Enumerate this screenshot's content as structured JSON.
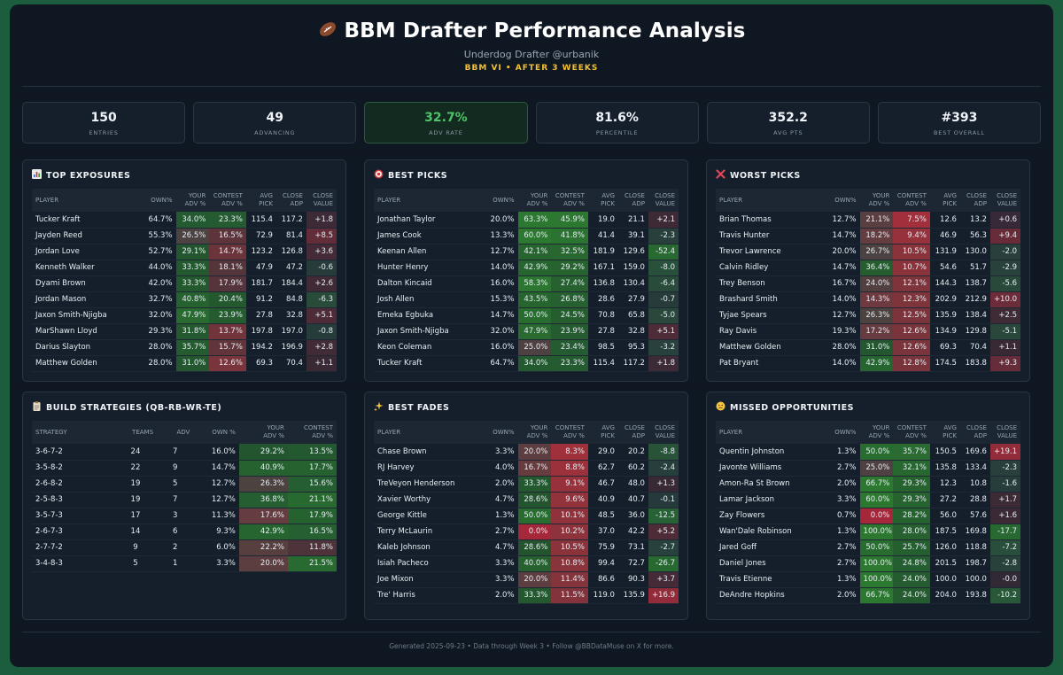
{
  "header": {
    "title": "BBM Drafter Performance Analysis",
    "subtitle": "Underdog Drafter @urbanik",
    "season": "BBM VI • AFTER 3 WEEKS"
  },
  "stats": [
    {
      "value": "150",
      "label": "ENTRIES"
    },
    {
      "value": "49",
      "label": "ADVANCING"
    },
    {
      "value": "32.7%",
      "label": "ADV RATE",
      "highlight": true
    },
    {
      "value": "81.6%",
      "label": "PERCENTILE"
    },
    {
      "value": "352.2",
      "label": "AVG PTS"
    },
    {
      "value": "#393",
      "label": "BEST OVERALL"
    }
  ],
  "player_columns": [
    "PLAYER",
    "OWN%",
    "YOUR ADV %",
    "CONTEST ADV %",
    "AVG PICK",
    "CLOSE ADP",
    "CLOSE VALUE"
  ],
  "panels": {
    "top_exposures": {
      "title": "TOP EXPOSURES",
      "icon": "bar-chart-icon",
      "rows": [
        [
          "Tucker Kraft",
          "64.7%",
          "34.0%",
          "23.3%",
          "115.4",
          "117.2",
          "+1.8"
        ],
        [
          "Jayden Reed",
          "55.3%",
          "26.5%",
          "16.5%",
          "72.9",
          "81.4",
          "+8.5"
        ],
        [
          "Jordan Love",
          "52.7%",
          "29.1%",
          "14.7%",
          "123.2",
          "126.8",
          "+3.6"
        ],
        [
          "Kenneth Walker",
          "44.0%",
          "33.3%",
          "18.1%",
          "47.9",
          "47.2",
          "-0.6"
        ],
        [
          "Dyami Brown",
          "42.0%",
          "33.3%",
          "17.9%",
          "181.7",
          "184.4",
          "+2.6"
        ],
        [
          "Jordan Mason",
          "32.7%",
          "40.8%",
          "20.4%",
          "91.2",
          "84.8",
          "-6.3"
        ],
        [
          "Jaxon Smith-Njigba",
          "32.0%",
          "47.9%",
          "23.9%",
          "27.8",
          "32.8",
          "+5.1"
        ],
        [
          "MarShawn Lloyd",
          "29.3%",
          "31.8%",
          "13.7%",
          "197.8",
          "197.0",
          "-0.8"
        ],
        [
          "Darius Slayton",
          "28.0%",
          "35.7%",
          "15.7%",
          "194.2",
          "196.9",
          "+2.8"
        ],
        [
          "Matthew Golden",
          "28.0%",
          "31.0%",
          "12.6%",
          "69.3",
          "70.4",
          "+1.1"
        ]
      ]
    },
    "best_picks": {
      "title": "BEST PICKS",
      "icon": "target-icon",
      "rows": [
        [
          "Jonathan Taylor",
          "20.0%",
          "63.3%",
          "45.9%",
          "19.0",
          "21.1",
          "+2.1"
        ],
        [
          "James Cook",
          "13.3%",
          "60.0%",
          "41.8%",
          "41.4",
          "39.1",
          "-2.3"
        ],
        [
          "Keenan Allen",
          "12.7%",
          "42.1%",
          "32.5%",
          "181.9",
          "129.6",
          "-52.4"
        ],
        [
          "Hunter Henry",
          "14.0%",
          "42.9%",
          "29.2%",
          "167.1",
          "159.0",
          "-8.0"
        ],
        [
          "Dalton Kincaid",
          "16.0%",
          "58.3%",
          "27.4%",
          "136.8",
          "130.4",
          "-6.4"
        ],
        [
          "Josh Allen",
          "15.3%",
          "43.5%",
          "26.8%",
          "28.6",
          "27.9",
          "-0.7"
        ],
        [
          "Emeka Egbuka",
          "14.7%",
          "50.0%",
          "24.5%",
          "70.8",
          "65.8",
          "-5.0"
        ],
        [
          "Jaxon Smith-Njigba",
          "32.0%",
          "47.9%",
          "23.9%",
          "27.8",
          "32.8",
          "+5.1"
        ],
        [
          "Keon Coleman",
          "16.0%",
          "25.0%",
          "23.4%",
          "98.5",
          "95.3",
          "-3.2"
        ],
        [
          "Tucker Kraft",
          "64.7%",
          "34.0%",
          "23.3%",
          "115.4",
          "117.2",
          "+1.8"
        ]
      ]
    },
    "worst_picks": {
      "title": "WORST PICKS",
      "icon": "x-icon",
      "rows": [
        [
          "Brian Thomas",
          "12.7%",
          "21.1%",
          "7.5%",
          "12.6",
          "13.2",
          "+0.6"
        ],
        [
          "Travis Hunter",
          "14.7%",
          "18.2%",
          "9.4%",
          "46.9",
          "56.3",
          "+9.4"
        ],
        [
          "Trevor Lawrence",
          "20.0%",
          "26.7%",
          "10.5%",
          "131.9",
          "130.0",
          "-2.0"
        ],
        [
          "Calvin Ridley",
          "14.7%",
          "36.4%",
          "10.7%",
          "54.6",
          "51.7",
          "-2.9"
        ],
        [
          "Trey Benson",
          "16.7%",
          "24.0%",
          "12.1%",
          "144.3",
          "138.7",
          "-5.6"
        ],
        [
          "Brashard Smith",
          "14.0%",
          "14.3%",
          "12.3%",
          "202.9",
          "212.9",
          "+10.0"
        ],
        [
          "Tyjae Spears",
          "12.7%",
          "26.3%",
          "12.5%",
          "135.9",
          "138.4",
          "+2.5"
        ],
        [
          "Ray Davis",
          "19.3%",
          "17.2%",
          "12.6%",
          "134.9",
          "129.8",
          "-5.1"
        ],
        [
          "Matthew Golden",
          "28.0%",
          "31.0%",
          "12.6%",
          "69.3",
          "70.4",
          "+1.1"
        ],
        [
          "Pat Bryant",
          "14.0%",
          "42.9%",
          "12.8%",
          "174.5",
          "183.8",
          "+9.3"
        ]
      ]
    },
    "build_strategies": {
      "title": "BUILD STRATEGIES (QB-RB-WR-TE)",
      "icon": "clipboard-icon",
      "columns": [
        "STRATEGY",
        "TEAMS",
        "ADV",
        "OWN %",
        "YOUR ADV %",
        "CONTEST ADV %"
      ],
      "rows": [
        [
          "3-6-7-2",
          "24",
          "7",
          "16.0%",
          "29.2%",
          "13.5%"
        ],
        [
          "3-5-8-2",
          "22",
          "9",
          "14.7%",
          "40.9%",
          "17.7%"
        ],
        [
          "2-6-8-2",
          "19",
          "5",
          "12.7%",
          "26.3%",
          "15.6%"
        ],
        [
          "2-5-8-3",
          "19",
          "7",
          "12.7%",
          "36.8%",
          "21.1%"
        ],
        [
          "3-5-7-3",
          "17",
          "3",
          "11.3%",
          "17.6%",
          "17.9%"
        ],
        [
          "2-6-7-3",
          "14",
          "6",
          "9.3%",
          "42.9%",
          "16.5%"
        ],
        [
          "2-7-7-2",
          "9",
          "2",
          "6.0%",
          "22.2%",
          "11.8%"
        ],
        [
          "3-4-8-3",
          "5",
          "1",
          "3.3%",
          "20.0%",
          "21.5%"
        ]
      ]
    },
    "best_fades": {
      "title": "BEST FADES",
      "icon": "sparkle-icon",
      "rows": [
        [
          "Chase Brown",
          "3.3%",
          "20.0%",
          "8.3%",
          "29.0",
          "20.2",
          "-8.8"
        ],
        [
          "RJ Harvey",
          "4.0%",
          "16.7%",
          "8.8%",
          "62.7",
          "60.2",
          "-2.4"
        ],
        [
          "TreVeyon Henderson",
          "2.0%",
          "33.3%",
          "9.1%",
          "46.7",
          "48.0",
          "+1.3"
        ],
        [
          "Xavier Worthy",
          "4.7%",
          "28.6%",
          "9.6%",
          "40.9",
          "40.7",
          "-0.1"
        ],
        [
          "George Kittle",
          "1.3%",
          "50.0%",
          "10.1%",
          "48.5",
          "36.0",
          "-12.5"
        ],
        [
          "Terry McLaurin",
          "2.7%",
          "0.0%",
          "10.2%",
          "37.0",
          "42.2",
          "+5.2"
        ],
        [
          "Kaleb Johnson",
          "4.7%",
          "28.6%",
          "10.5%",
          "75.9",
          "73.1",
          "-2.7"
        ],
        [
          "Isiah Pacheco",
          "3.3%",
          "40.0%",
          "10.8%",
          "99.4",
          "72.7",
          "-26.7"
        ],
        [
          "Joe Mixon",
          "3.3%",
          "20.0%",
          "11.4%",
          "86.6",
          "90.3",
          "+3.7"
        ],
        [
          "Tre' Harris",
          "2.0%",
          "33.3%",
          "11.5%",
          "119.0",
          "135.9",
          "+16.9"
        ]
      ]
    },
    "missed_opportunities": {
      "title": "MISSED OPPORTUNITIES",
      "icon": "face-icon",
      "rows": [
        [
          "Quentin Johnston",
          "1.3%",
          "50.0%",
          "35.7%",
          "150.5",
          "169.6",
          "+19.1"
        ],
        [
          "Javonte Williams",
          "2.7%",
          "25.0%",
          "32.1%",
          "135.8",
          "133.4",
          "-2.3"
        ],
        [
          "Amon-Ra St Brown",
          "2.0%",
          "66.7%",
          "29.3%",
          "12.3",
          "10.8",
          "-1.6"
        ],
        [
          "Lamar Jackson",
          "3.3%",
          "60.0%",
          "29.3%",
          "27.2",
          "28.8",
          "+1.7"
        ],
        [
          "Zay Flowers",
          "0.7%",
          "0.0%",
          "28.2%",
          "56.0",
          "57.6",
          "+1.6"
        ],
        [
          "Wan'Dale Robinson",
          "1.3%",
          "100.0%",
          "28.0%",
          "187.5",
          "169.8",
          "-17.7"
        ],
        [
          "Jared Goff",
          "2.7%",
          "50.0%",
          "25.7%",
          "126.0",
          "118.8",
          "-7.2"
        ],
        [
          "Daniel Jones",
          "2.7%",
          "100.0%",
          "24.8%",
          "201.5",
          "198.7",
          "-2.8"
        ],
        [
          "Travis Etienne",
          "1.3%",
          "100.0%",
          "24.0%",
          "100.0",
          "100.0",
          "-0.0"
        ],
        [
          "DeAndre Hopkins",
          "2.0%",
          "66.7%",
          "24.0%",
          "204.0",
          "193.8",
          "-10.2"
        ]
      ]
    }
  },
  "footer": "Generated 2025-09-23 • Data through Week 3 • Follow @BBDataMuse on X for more.",
  "colors": {
    "background": "#0f1722",
    "panel": "#151f2b",
    "positive": "#2e7d32",
    "negative": "#a52a3a",
    "accent_gold": "#f2c230",
    "accent_green": "#4fc36a"
  }
}
